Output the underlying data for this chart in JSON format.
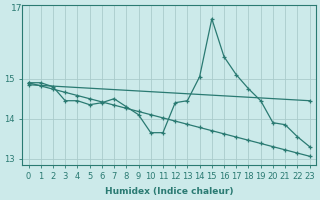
{
  "title": "17",
  "xlabel": "Humidex (Indice chaleur)",
  "ylabel": "",
  "background_color": "#cceaea",
  "grid_color": "#aacccc",
  "line_color": "#2a7a72",
  "xlim_min": -0.5,
  "xlim_max": 23.5,
  "ylim_min": 12.85,
  "ylim_max": 16.85,
  "yticks": [
    13,
    14,
    15
  ],
  "ytick_extra": 17,
  "xticks": [
    0,
    1,
    2,
    3,
    4,
    5,
    6,
    7,
    8,
    9,
    10,
    11,
    12,
    13,
    14,
    15,
    16,
    17,
    18,
    19,
    20,
    21,
    22,
    23
  ],
  "series1_x": [
    0,
    1,
    2,
    3,
    4,
    5,
    6,
    7,
    8,
    9,
    10,
    11,
    12,
    13,
    14,
    15,
    16,
    17,
    18,
    19,
    20,
    21,
    22,
    23
  ],
  "series1_y": [
    14.9,
    14.9,
    14.8,
    14.45,
    14.45,
    14.35,
    14.4,
    14.5,
    14.3,
    14.1,
    13.65,
    13.65,
    14.4,
    14.45,
    15.05,
    16.5,
    15.55,
    15.1,
    14.75,
    14.45,
    13.9,
    13.85,
    13.55,
    13.3
  ],
  "series2_x": [
    0,
    1,
    2,
    3,
    4,
    5,
    6,
    7,
    8,
    9,
    10,
    11,
    12,
    13,
    14,
    15,
    16,
    17,
    18,
    19,
    20,
    21,
    22,
    23
  ],
  "series2_y": [
    14.9,
    14.82,
    14.74,
    14.66,
    14.58,
    14.5,
    14.42,
    14.34,
    14.26,
    14.18,
    14.1,
    14.02,
    13.94,
    13.86,
    13.78,
    13.7,
    13.62,
    13.54,
    13.46,
    13.38,
    13.3,
    13.22,
    13.14,
    13.06
  ],
  "series3_x": [
    0,
    23
  ],
  "series3_y": [
    14.85,
    14.45
  ]
}
